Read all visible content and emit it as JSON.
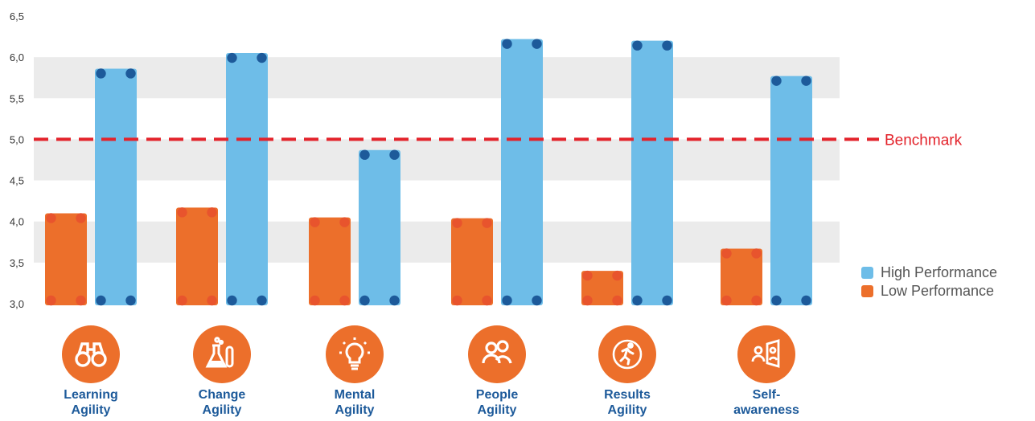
{
  "chart_data": {
    "type": "bar",
    "categories": [
      "Learning Agility",
      "Change Agility",
      "Mental Agility",
      "People Agility",
      "Results Agility",
      "Self-awareness"
    ],
    "series": [
      {
        "name": "Low Performance",
        "color": "#ec6f2b",
        "values": [
          4.1,
          4.17,
          4.05,
          4.04,
          3.4,
          3.67
        ]
      },
      {
        "name": "High Performance",
        "color": "#6ebde8",
        "values": [
          5.86,
          6.05,
          4.87,
          6.22,
          6.2,
          5.77
        ]
      }
    ],
    "ylim": [
      3.0,
      6.5
    ],
    "yticks": [
      "3,0",
      "3,5",
      "4,0",
      "4,5",
      "5,0",
      "5,5",
      "6,0",
      "6,5"
    ],
    "grid": "alternating horizontal bands",
    "benchmark": {
      "value": 5.0,
      "label": "Benchmark",
      "color": "#e3232b"
    },
    "legend": {
      "placement": "right",
      "items": [
        "High Performance",
        "Low Performance"
      ]
    },
    "xlabel": "",
    "ylabel": ""
  },
  "categories_display": [
    {
      "line1": "Learning",
      "line2": "Agility",
      "icon": "binoculars-icon"
    },
    {
      "line1": "Change",
      "line2": "Agility",
      "icon": "flask-icon"
    },
    {
      "line1": "Mental",
      "line2": "Agility",
      "icon": "lightbulb-icon"
    },
    {
      "line1": "People",
      "line2": "Agility",
      "icon": "people-icon"
    },
    {
      "line1": "Results",
      "line2": "Agility",
      "icon": "runner-icon"
    },
    {
      "line1": "Self-",
      "line2": "awareness",
      "icon": "mirror-icon"
    }
  ],
  "colors": {
    "low": "#ec6f2b",
    "low_dot": "#e8542d",
    "high": "#6ebde8",
    "high_dot": "#1d5a9a",
    "band": "#ebebeb",
    "category_text": "#1d5a9a",
    "icon_circle": "#ec6f2b"
  }
}
